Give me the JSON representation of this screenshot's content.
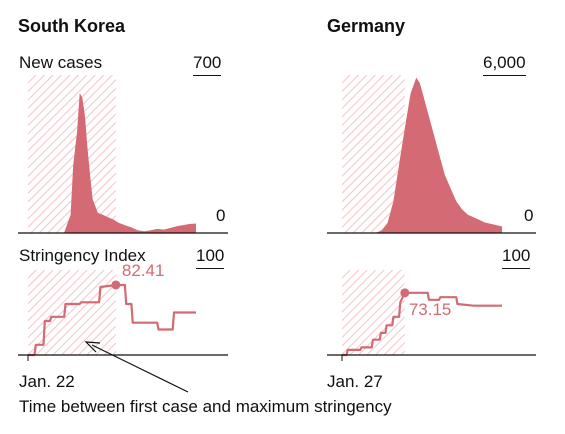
{
  "colors": {
    "accent": "#d46a73",
    "shade_stroke": "#f2c4c7",
    "axis": "#111111",
    "annotation_text": "#d46a73"
  },
  "annotation": {
    "text": "Time between first case and maximum stringency"
  },
  "chart_data": [
    {
      "type": "area",
      "country": "South Korea",
      "label": "New cases",
      "ylim": [
        0,
        700
      ],
      "tick_labels": {
        "top": "700",
        "bottom": "0"
      },
      "x_start_label": "Jan. 22",
      "shaded_days": [
        0,
        68
      ],
      "x_max_days": 130,
      "series": [
        {
          "x": [
            0,
            20,
            28,
            33,
            35,
            38,
            40,
            42,
            44,
            46,
            48,
            50,
            54,
            58,
            62,
            66,
            70,
            75,
            80,
            85,
            90,
            95,
            100,
            105,
            110,
            115,
            120,
            125,
            130
          ],
          "values": [
            0,
            0,
            2,
            80,
            300,
            450,
            620,
            600,
            520,
            380,
            260,
            150,
            90,
            80,
            70,
            60,
            45,
            35,
            25,
            12,
            8,
            12,
            18,
            15,
            22,
            30,
            35,
            40,
            42
          ]
        }
      ]
    },
    {
      "type": "area",
      "country": "Germany",
      "label": "",
      "ylim": [
        0,
        6000
      ],
      "tick_labels": {
        "top": "6,000",
        "bottom": "0"
      },
      "x_start_label": "Jan. 27",
      "shaded_days": [
        0,
        55
      ],
      "x_max_days": 140,
      "series": [
        {
          "x": [
            0,
            25,
            30,
            35,
            40,
            45,
            50,
            55,
            60,
            65,
            68,
            70,
            75,
            80,
            85,
            90,
            95,
            100,
            105,
            110,
            115,
            120,
            125,
            130,
            135,
            140
          ],
          "values": [
            0,
            0,
            20,
            100,
            400,
            1200,
            2600,
            4000,
            5300,
            5900,
            5700,
            5400,
            4600,
            3800,
            3000,
            2200,
            1700,
            1200,
            900,
            700,
            600,
            500,
            400,
            350,
            300,
            250
          ]
        }
      ]
    },
    {
      "type": "line",
      "country": "South Korea",
      "label": "Stringency Index",
      "ylim": [
        0,
        100
      ],
      "tick_labels": {
        "top": "100"
      },
      "x_start_label": "Jan. 22",
      "shaded_days": [
        0,
        68
      ],
      "x_max_days": 130,
      "max_label": "82.41",
      "max_point": {
        "x": 68,
        "y": 82.41
      },
      "series": [
        {
          "x": [
            0,
            5,
            6,
            12,
            13,
            17,
            18,
            28,
            29,
            40,
            41,
            55,
            56,
            68,
            75,
            76,
            80,
            81,
            100,
            101,
            112,
            113,
            130
          ],
          "values": [
            0,
            0,
            12,
            12,
            40,
            40,
            45,
            45,
            60,
            60,
            62,
            62,
            80,
            82.41,
            82.41,
            60,
            60,
            38,
            38,
            30,
            30,
            50,
            50
          ]
        }
      ]
    },
    {
      "type": "line",
      "country": "Germany",
      "label": "",
      "ylim": [
        0,
        100
      ],
      "tick_labels": {
        "top": "100"
      },
      "x_start_label": "Jan. 27",
      "shaded_days": [
        0,
        55
      ],
      "x_max_days": 140,
      "max_label": "73.15",
      "max_point": {
        "x": 55,
        "y": 73.15
      },
      "series": [
        {
          "x": [
            0,
            4,
            5,
            16,
            17,
            26,
            27,
            33,
            34,
            38,
            39,
            44,
            45,
            50,
            51,
            55,
            75,
            76,
            85,
            86,
            100,
            101,
            115,
            140
          ],
          "values": [
            0,
            0,
            6,
            6,
            9,
            9,
            18,
            18,
            26,
            26,
            35,
            35,
            45,
            45,
            62,
            73.15,
            73.15,
            65,
            65,
            68,
            68,
            60,
            58,
            58
          ]
        }
      ]
    }
  ]
}
